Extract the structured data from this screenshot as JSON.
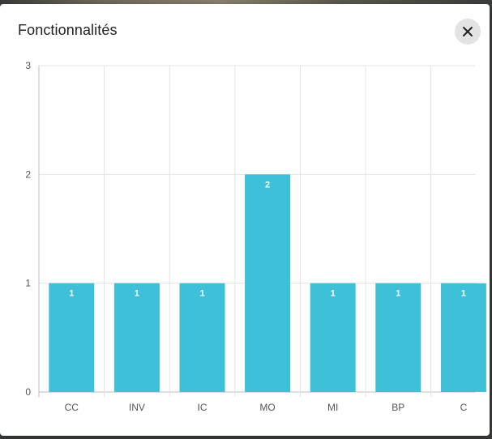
{
  "dialog": {
    "title": "Fonctionnalités",
    "close_icon": "close-icon"
  },
  "colors": {
    "bar": "#3ec1d8",
    "grid": "#e4e4e8",
    "axis": "#bfbfc5"
  },
  "chart_data": {
    "type": "bar",
    "categories": [
      "CC",
      "INV",
      "IC",
      "MO",
      "MI",
      "BP",
      "C"
    ],
    "values": [
      1,
      1,
      1,
      2,
      1,
      1,
      1
    ],
    "title": "",
    "xlabel": "",
    "ylabel": "",
    "ylim": [
      0,
      3
    ],
    "yticks": [
      0,
      1,
      2,
      3
    ],
    "grid": true,
    "data_labels": true
  }
}
